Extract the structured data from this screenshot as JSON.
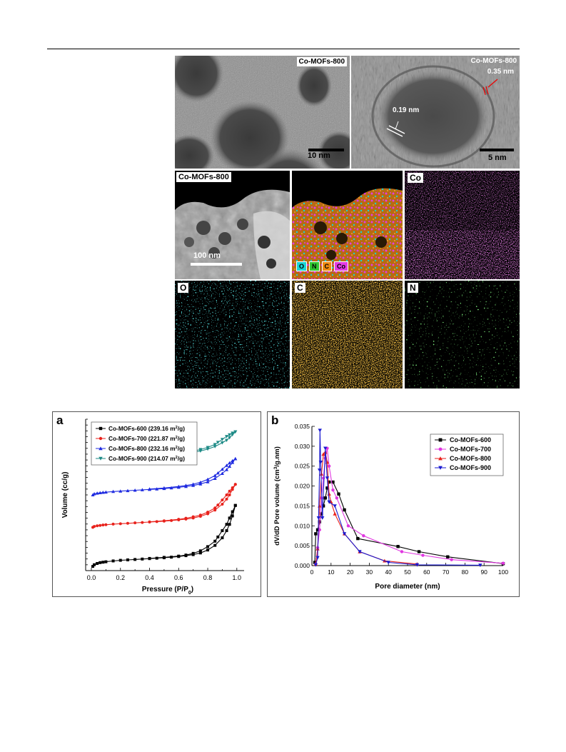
{
  "micrographs": {
    "tem1_label": "Co-MOFs-800",
    "tem1_scale": "10 nm",
    "tem2_label": "Co-MOFs-800",
    "tem2_spacing_outer": "0.35 nm",
    "tem2_spacing_inner": "0.19 nm",
    "tem2_scale": "5 nm",
    "haadf_label": "Co-MOFs-800",
    "haadf_scale": "100 nm",
    "overlay_legend": [
      "O",
      "N",
      "C",
      "Co"
    ],
    "map_co_label": "Co",
    "map_o_label": "O",
    "map_c_label": "C",
    "map_n_label": "N",
    "colors": {
      "Co": "#e23be2",
      "O": "#19d5d5",
      "C": "#f08a10",
      "N": "#31c831"
    }
  },
  "chart_data": [
    {
      "type": "line",
      "panel_label": "a",
      "xlabel": "Pressure (P/P0)",
      "xlabel_main": "Pressure (P/P",
      "xlabel_sub": "0",
      "xlabel_end": ")",
      "ylabel": "Volume (cc/g)",
      "xlim": [
        0,
        1.05
      ],
      "x_ticks": [
        "0.0",
        "0.2",
        "0.4",
        "0.6",
        "0.8",
        "1.0"
      ],
      "y_ticks_labeled": false,
      "legend_position": "top-left",
      "series": [
        {
          "name": "Co-MOFs-600 (239.16 m2/g)",
          "legend_main": "Co-MOFs-600 (239.16 m",
          "legend_sup": "2",
          "legend_end": "/g)",
          "color": "#000000",
          "marker": "square",
          "offset": 0,
          "adsorption": [
            [
              0.01,
              0.0
            ],
            [
              0.02,
              0.4
            ],
            [
              0.04,
              0.7
            ],
            [
              0.06,
              0.9
            ],
            [
              0.08,
              1.0
            ],
            [
              0.1,
              1.1
            ],
            [
              0.15,
              1.3
            ],
            [
              0.2,
              1.45
            ],
            [
              0.25,
              1.55
            ],
            [
              0.3,
              1.65
            ],
            [
              0.35,
              1.75
            ],
            [
              0.4,
              1.85
            ],
            [
              0.45,
              1.95
            ],
            [
              0.5,
              2.05
            ],
            [
              0.55,
              2.2
            ],
            [
              0.6,
              2.35
            ],
            [
              0.65,
              2.55
            ],
            [
              0.7,
              2.8
            ],
            [
              0.75,
              3.2
            ],
            [
              0.8,
              3.9
            ],
            [
              0.85,
              5.0
            ],
            [
              0.9,
              6.8
            ],
            [
              0.93,
              8.5
            ],
            [
              0.95,
              10.0
            ],
            [
              0.97,
              12.0
            ],
            [
              0.99,
              14.5
            ]
          ],
          "desorption": [
            [
              0.99,
              14.5
            ],
            [
              0.97,
              13.0
            ],
            [
              0.95,
              11.5
            ],
            [
              0.93,
              10.0
            ],
            [
              0.9,
              8.5
            ],
            [
              0.87,
              7.0
            ],
            [
              0.85,
              6.0
            ],
            [
              0.8,
              4.7
            ],
            [
              0.75,
              3.7
            ],
            [
              0.7,
              3.1
            ],
            [
              0.65,
              2.7
            ],
            [
              0.6,
              2.45
            ],
            [
              0.5,
              2.15
            ],
            [
              0.4,
              1.9
            ]
          ]
        },
        {
          "name": "Co-MOFs-700 (221.87 m2/g)",
          "legend_main": "Co-MOFs-700 (221.87 m",
          "legend_sup": "2",
          "legend_end": "/g)",
          "color": "#e8221c",
          "marker": "circle",
          "offset": 0,
          "adsorption": [
            [
              0.01,
              9.3
            ],
            [
              0.02,
              9.5
            ],
            [
              0.04,
              9.65
            ],
            [
              0.06,
              9.75
            ],
            [
              0.08,
              9.85
            ],
            [
              0.1,
              9.9
            ],
            [
              0.15,
              10.05
            ],
            [
              0.2,
              10.15
            ],
            [
              0.25,
              10.25
            ],
            [
              0.3,
              10.35
            ],
            [
              0.35,
              10.45
            ],
            [
              0.4,
              10.55
            ],
            [
              0.45,
              10.65
            ],
            [
              0.5,
              10.75
            ],
            [
              0.55,
              10.9
            ],
            [
              0.6,
              11.05
            ],
            [
              0.65,
              11.25
            ],
            [
              0.7,
              11.5
            ],
            [
              0.75,
              11.9
            ],
            [
              0.8,
              12.5
            ],
            [
              0.85,
              13.4
            ],
            [
              0.9,
              14.8
            ],
            [
              0.93,
              16.0
            ],
            [
              0.95,
              17.0
            ],
            [
              0.97,
              18.3
            ],
            [
              0.99,
              19.5
            ]
          ],
          "desorption": [
            [
              0.99,
              19.5
            ],
            [
              0.97,
              18.7
            ],
            [
              0.95,
              17.9
            ],
            [
              0.93,
              17.0
            ],
            [
              0.9,
              15.8
            ],
            [
              0.87,
              14.6
            ],
            [
              0.85,
              13.9
            ],
            [
              0.8,
              12.9
            ],
            [
              0.75,
              12.2
            ],
            [
              0.7,
              11.8
            ],
            [
              0.65,
              11.45
            ],
            [
              0.6,
              11.2
            ],
            [
              0.5,
              10.85
            ],
            [
              0.4,
              10.6
            ]
          ]
        },
        {
          "name": "Co-MOFs-800 (232.16 m2/g)",
          "legend_main": "Co-MOFs-800 (232.16 m",
          "legend_sup": "2",
          "legend_end": "/g)",
          "color": "#1f2be0",
          "marker": "triangle-up",
          "offset": 0,
          "adsorption": [
            [
              0.01,
              17.0
            ],
            [
              0.02,
              17.25
            ],
            [
              0.04,
              17.4
            ],
            [
              0.06,
              17.5
            ],
            [
              0.08,
              17.6
            ],
            [
              0.1,
              17.65
            ],
            [
              0.15,
              17.8
            ],
            [
              0.2,
              17.9
            ],
            [
              0.25,
              18.0
            ],
            [
              0.3,
              18.1
            ],
            [
              0.35,
              18.2
            ],
            [
              0.4,
              18.3
            ],
            [
              0.45,
              18.4
            ],
            [
              0.5,
              18.5
            ],
            [
              0.55,
              18.65
            ],
            [
              0.6,
              18.8
            ],
            [
              0.65,
              19.0
            ],
            [
              0.7,
              19.25
            ],
            [
              0.75,
              19.6
            ],
            [
              0.8,
              20.1
            ],
            [
              0.85,
              20.9
            ],
            [
              0.9,
              22.1
            ],
            [
              0.93,
              23.0
            ],
            [
              0.95,
              23.8
            ],
            [
              0.97,
              24.7
            ],
            [
              0.99,
              25.6
            ]
          ],
          "desorption": [
            [
              0.99,
              25.6
            ],
            [
              0.97,
              25.1
            ],
            [
              0.95,
              24.6
            ],
            [
              0.93,
              24.0
            ],
            [
              0.9,
              23.1
            ],
            [
              0.87,
              22.2
            ],
            [
              0.85,
              21.6
            ],
            [
              0.8,
              20.7
            ],
            [
              0.75,
              20.0
            ],
            [
              0.7,
              19.55
            ],
            [
              0.65,
              19.25
            ],
            [
              0.6,
              19.0
            ],
            [
              0.5,
              18.65
            ],
            [
              0.4,
              18.4
            ]
          ]
        },
        {
          "name": "Co-MOFs-900 (214.07 m2/g)",
          "legend_main": "Co-MOFs-900 (214.07 m",
          "legend_sup": "2",
          "legend_end": "/g)",
          "color": "#1d8a86",
          "marker": "triangle-down",
          "offset": 0,
          "adsorption": [
            [
              0.01,
              25.0
            ],
            [
              0.02,
              25.2
            ],
            [
              0.04,
              25.35
            ],
            [
              0.06,
              25.45
            ],
            [
              0.08,
              25.5
            ],
            [
              0.1,
              25.55
            ],
            [
              0.15,
              25.7
            ],
            [
              0.2,
              25.8
            ],
            [
              0.25,
              25.9
            ],
            [
              0.3,
              26.0
            ],
            [
              0.35,
              26.1
            ],
            [
              0.4,
              26.2
            ],
            [
              0.45,
              26.3
            ],
            [
              0.5,
              26.4
            ],
            [
              0.55,
              26.55
            ],
            [
              0.6,
              26.7
            ],
            [
              0.65,
              26.9
            ],
            [
              0.7,
              27.1
            ],
            [
              0.75,
              27.45
            ],
            [
              0.8,
              27.9
            ],
            [
              0.85,
              28.5
            ],
            [
              0.9,
              29.4
            ],
            [
              0.93,
              30.0
            ],
            [
              0.95,
              30.6
            ],
            [
              0.97,
              31.3
            ],
            [
              0.99,
              32.0
            ]
          ],
          "desorption": [
            [
              0.99,
              32.0
            ],
            [
              0.97,
              31.7
            ],
            [
              0.95,
              31.3
            ],
            [
              0.93,
              30.9
            ],
            [
              0.9,
              30.2
            ],
            [
              0.87,
              29.5
            ],
            [
              0.85,
              29.0
            ],
            [
              0.8,
              28.3
            ],
            [
              0.75,
              27.8
            ],
            [
              0.7,
              27.4
            ],
            [
              0.65,
              27.15
            ],
            [
              0.6,
              26.95
            ],
            [
              0.5,
              26.65
            ],
            [
              0.4,
              26.4
            ]
          ]
        }
      ],
      "ylim": [
        -1,
        35
      ]
    },
    {
      "type": "line",
      "panel_label": "b",
      "xlabel": "Pore diameter (nm)",
      "ylabel": "dV/dD Pore volume (cm3/g.nm)",
      "ylabel_main": "dV/dD Pore volume (cm",
      "ylabel_sup": "3",
      "ylabel_end": "/g.nm)",
      "xlim": [
        0,
        100
      ],
      "ylim": [
        0,
        0.035
      ],
      "x_ticks": [
        "0",
        "10",
        "20",
        "30",
        "40",
        "50",
        "60",
        "70",
        "80",
        "90",
        "100"
      ],
      "y_ticks": [
        "0.000",
        "0.005",
        "0.010",
        "0.015",
        "0.020",
        "0.025",
        "0.030",
        "0.035"
      ],
      "legend_position": "top-right",
      "series": [
        {
          "name": "Co-MOFs-600",
          "color": "#000000",
          "marker": "square",
          "points": [
            [
              1.5,
              0.0008
            ],
            [
              2,
              0.008
            ],
            [
              3,
              0.009
            ],
            [
              4,
              0.011
            ],
            [
              5,
              0.013
            ],
            [
              6,
              0.015
            ],
            [
              7,
              0.017
            ],
            [
              8,
              0.0195
            ],
            [
              9,
              0.021
            ],
            [
              11,
              0.021
            ],
            [
              14,
              0.018
            ],
            [
              17,
              0.014
            ],
            [
              24,
              0.0068
            ],
            [
              45,
              0.0048
            ],
            [
              56,
              0.0035
            ],
            [
              71,
              0.0022
            ],
            [
              100,
              0.0005
            ]
          ]
        },
        {
          "name": "Co-MOFs-700",
          "color": "#e036e0",
          "marker": "circle",
          "points": [
            [
              2,
              0.0004
            ],
            [
              3,
              0.0045
            ],
            [
              4,
              0.009
            ],
            [
              5,
              0.017
            ],
            [
              6,
              0.022
            ],
            [
              7,
              0.027
            ],
            [
              8,
              0.0295
            ],
            [
              9,
              0.025
            ],
            [
              11,
              0.019
            ],
            [
              13,
              0.017
            ],
            [
              19,
              0.01
            ],
            [
              27,
              0.0075
            ],
            [
              47,
              0.0035
            ],
            [
              58,
              0.0026
            ],
            [
              73,
              0.0015
            ],
            [
              100,
              0.0006
            ]
          ]
        },
        {
          "name": "Co-MOFs-800",
          "color": "#e8221c",
          "marker": "triangle-up",
          "points": [
            [
              2,
              0.0004
            ],
            [
              3,
              0.0042
            ],
            [
              4,
              0.015
            ],
            [
              5,
              0.023
            ],
            [
              6,
              0.028
            ],
            [
              7,
              0.0285
            ],
            [
              8,
              0.026
            ],
            [
              9,
              0.018
            ],
            [
              10,
              0.016
            ],
            [
              12,
              0.013
            ],
            [
              17,
              0.008
            ],
            [
              25,
              0.0035
            ],
            [
              38,
              0.0012
            ],
            [
              55,
              0.0004
            ]
          ]
        },
        {
          "name": "Co-MOFs-900",
          "color": "#1a1ad0",
          "marker": "triangle-down",
          "points": [
            [
              2,
              0.0002
            ],
            [
              3,
              0.002
            ],
            [
              3.5,
              0.012
            ],
            [
              4,
              0.024
            ],
            [
              4.2,
              0.034
            ],
            [
              4.6,
              0.026
            ],
            [
              5.5,
              0.012
            ],
            [
              7,
              0.0295
            ],
            [
              8,
              0.022
            ],
            [
              9,
              0.016
            ],
            [
              12,
              0.015
            ],
            [
              17,
              0.008
            ],
            [
              25,
              0.0035
            ],
            [
              40,
              0.0008
            ],
            [
              55,
              0.0002
            ],
            [
              88,
              0.0001
            ]
          ]
        }
      ]
    }
  ]
}
